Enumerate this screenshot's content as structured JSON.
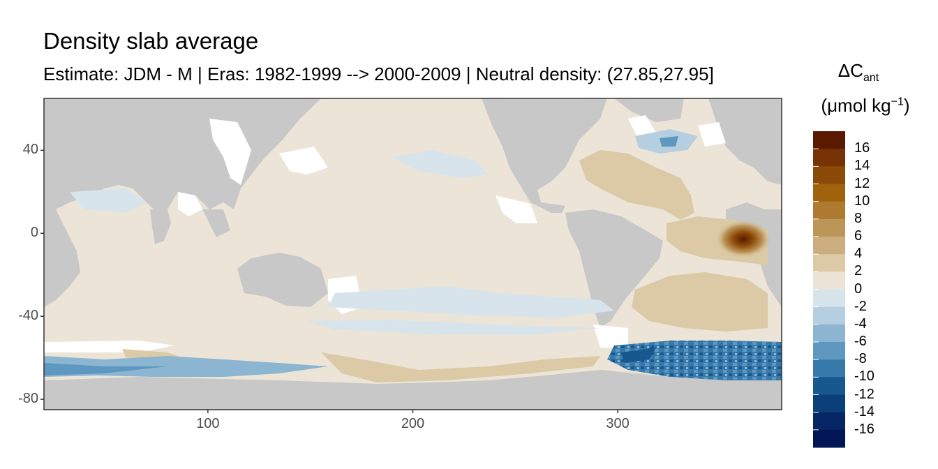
{
  "chart_data": {
    "type": "heatmap",
    "title": "Density slab average",
    "subtitle": "Estimate: JDM - M | Eras: 1982-1999 --> 2000-2009 | Neutral density: (27.85,27.95]",
    "xlabel": "",
    "ylabel": "",
    "xlim": [
      20,
      380
    ],
    "ylim": [
      -85,
      65
    ],
    "x_ticks": [
      "100",
      "200",
      "300"
    ],
    "y_ticks": [
      "40",
      "0",
      "-40",
      "-80"
    ],
    "x_tick_values": [
      100,
      200,
      300
    ],
    "y_tick_values": [
      40,
      0,
      -40,
      -80
    ],
    "legend": {
      "title_main": "ΔC",
      "title_sub": "ant",
      "unit_prefix": "(μmol kg",
      "unit_sup": "−1",
      "unit_suffix": ")",
      "labels": [
        "16",
        "14",
        "12",
        "10",
        "8",
        "6",
        "4",
        "2",
        "0",
        "-2",
        "-4",
        "-6",
        "-8",
        "-10",
        "-12",
        "-14",
        "-16"
      ],
      "bins": [
        18,
        16,
        14,
        12,
        10,
        8,
        6,
        4,
        2,
        0,
        -2,
        -4,
        -6,
        -8,
        -10,
        -12,
        -14,
        -16
      ],
      "colors": [
        "#5a1a02",
        "#773205",
        "#8c4a08",
        "#a0620c",
        "#ad7a2f",
        "#bc9559",
        "#cbad80",
        "#dccaa6",
        "#ebe4d7",
        "#d8e4ec",
        "#b6cfe0",
        "#8cb5d2",
        "#5e98c1",
        "#3779aa",
        "#17598f",
        "#0b3f7a",
        "#062665",
        "#021554"
      ]
    },
    "colors": {
      "land": "#c8c8c8",
      "ocean_base": "#ebe4d7",
      "no_data": "#ffffff",
      "panel_border": "#333333"
    }
  }
}
